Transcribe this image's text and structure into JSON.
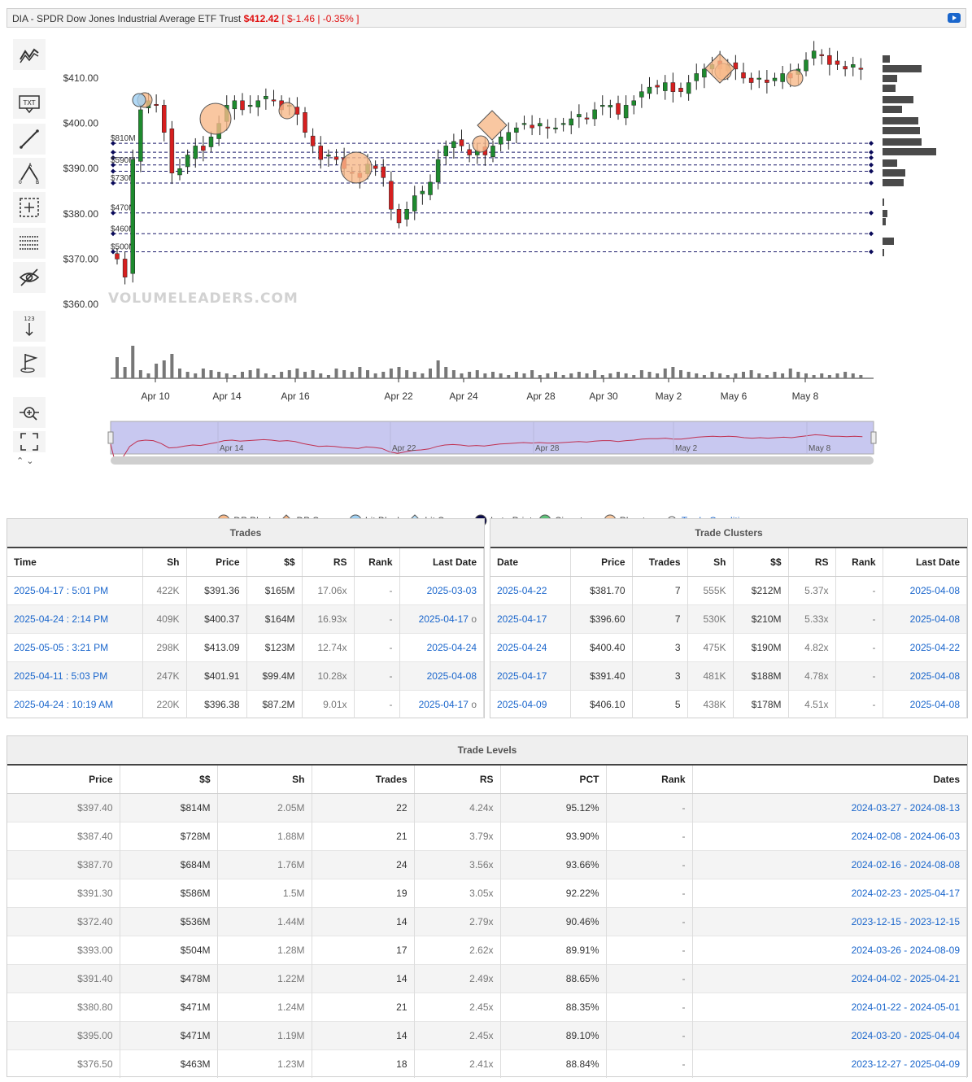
{
  "header": {
    "title": "DIA - SPDR Dow Jones Industrial Average ETF Trust",
    "price": "$412.42",
    "change": "[ $-1.46 | -0.35% ]"
  },
  "watermark": "VOLUMELEADERS.COM",
  "toolbar": {
    "txt_label": "TXT",
    "num_label": "123"
  },
  "chart_data": {
    "type": "candlestick",
    "y_ticks": [
      "$410.00",
      "$400.00",
      "$390.00",
      "$380.00",
      "$370.00",
      "$360.00"
    ],
    "y_values": [
      410,
      400,
      390,
      380,
      370,
      360
    ],
    "x_ticks": [
      "Apr 10",
      "Apr 14",
      "Apr 16",
      "Apr 22",
      "Apr 24",
      "Apr 28",
      "Apr 30",
      "May 2",
      "May 6",
      "May 8"
    ],
    "navigator_ticks": [
      "Apr 14",
      "Apr 22",
      "Apr 28",
      "May 2",
      "May 8"
    ],
    "level_labels": [
      {
        "label": "$810M",
        "price": 395.6
      },
      {
        "label": "$590M",
        "price": 390.8
      },
      {
        "label": "$730M",
        "price": 386.8
      },
      {
        "label": "$470M",
        "price": 380.2
      },
      {
        "label": "$460M",
        "price": 375.6
      },
      {
        "label": "$500M",
        "price": 371.6
      }
    ],
    "extra_levels": [
      393.6,
      392.4,
      389.4
    ]
  },
  "legend": [
    {
      "label": "DP Block",
      "color": "#f8b98a",
      "shape": "circle"
    },
    {
      "label": "DP Sweep",
      "color": "#f8b98a",
      "shape": "diamond"
    },
    {
      "label": "Lit Block",
      "color": "#9fd0f2",
      "shape": "circle"
    },
    {
      "label": "Lit Sweep",
      "color": "#b8e0f8",
      "shape": "diamond"
    },
    {
      "label": "Late Print",
      "color": "#0a0a4a",
      "shape": "circle"
    },
    {
      "label": "Signature",
      "color": "#5ec27a",
      "shape": "circle"
    },
    {
      "label": "Phantom",
      "color": "#f8c8a0",
      "shape": "circle"
    },
    {
      "label": "Trade Conditions",
      "color": "#1a66cc",
      "shape": "link"
    }
  ],
  "trades": {
    "title": "Trades",
    "columns": [
      "Time",
      "Sh",
      "Price",
      "$$",
      "RS",
      "Rank",
      "Last Date"
    ],
    "rows": [
      [
        "2025-04-17 : 5:01 PM",
        "422K",
        "$391.36",
        "$165M",
        "17.06x",
        "-",
        "2025-03-03",
        ""
      ],
      [
        "2025-04-24 : 2:14 PM",
        "409K",
        "$400.37",
        "$164M",
        "16.93x",
        "-",
        "2025-04-17",
        "o"
      ],
      [
        "2025-05-05 : 3:21 PM",
        "298K",
        "$413.09",
        "$123M",
        "12.74x",
        "-",
        "2025-04-24",
        ""
      ],
      [
        "2025-04-11 : 5:03 PM",
        "247K",
        "$401.91",
        "$99.4M",
        "10.28x",
        "-",
        "2025-04-08",
        ""
      ],
      [
        "2025-04-24 : 10:19 AM",
        "220K",
        "$396.38",
        "$87.2M",
        "9.01x",
        "-",
        "2025-04-17",
        "o"
      ]
    ]
  },
  "clusters": {
    "title": "Trade Clusters",
    "columns": [
      "Date",
      "Price",
      "Trades",
      "Sh",
      "$$",
      "RS",
      "Rank",
      "Last Date"
    ],
    "rows": [
      [
        "2025-04-22",
        "$381.70",
        "7",
        "555K",
        "$212M",
        "5.37x",
        "-",
        "2025-04-08"
      ],
      [
        "2025-04-17",
        "$396.60",
        "7",
        "530K",
        "$210M",
        "5.33x",
        "-",
        "2025-04-08"
      ],
      [
        "2025-04-24",
        "$400.40",
        "3",
        "475K",
        "$190M",
        "4.82x",
        "-",
        "2025-04-22"
      ],
      [
        "2025-04-17",
        "$391.40",
        "3",
        "481K",
        "$188M",
        "4.78x",
        "-",
        "2025-04-08"
      ],
      [
        "2025-04-09",
        "$406.10",
        "5",
        "438K",
        "$178M",
        "4.51x",
        "-",
        "2025-04-08"
      ]
    ]
  },
  "levels": {
    "title": "Trade Levels",
    "columns": [
      "Price",
      "$$",
      "Sh",
      "Trades",
      "RS",
      "PCT",
      "Rank",
      "Dates"
    ],
    "rows": [
      [
        "$397.40",
        "$814M",
        "2.05M",
        "22",
        "4.24x",
        "95.12%",
        "-",
        "2024-03-27 - 2024-08-13"
      ],
      [
        "$387.40",
        "$728M",
        "1.88M",
        "21",
        "3.79x",
        "93.90%",
        "-",
        "2024-02-08 - 2024-06-03"
      ],
      [
        "$387.70",
        "$684M",
        "1.76M",
        "24",
        "3.56x",
        "93.66%",
        "-",
        "2024-02-16 - 2024-08-08"
      ],
      [
        "$391.30",
        "$586M",
        "1.5M",
        "19",
        "3.05x",
        "92.22%",
        "-",
        "2024-02-23 - 2025-04-17"
      ],
      [
        "$372.40",
        "$536M",
        "1.44M",
        "14",
        "2.79x",
        "90.46%",
        "-",
        "2023-12-15 - 2023-12-15"
      ],
      [
        "$393.00",
        "$504M",
        "1.28M",
        "17",
        "2.62x",
        "89.91%",
        "-",
        "2024-03-26 - 2024-08-09"
      ],
      [
        "$391.40",
        "$478M",
        "1.22M",
        "14",
        "2.49x",
        "88.65%",
        "-",
        "2024-04-02 - 2025-04-21"
      ],
      [
        "$380.80",
        "$471M",
        "1.24M",
        "21",
        "2.45x",
        "88.35%",
        "-",
        "2024-01-22 - 2024-05-01"
      ],
      [
        "$395.00",
        "$471M",
        "1.19M",
        "14",
        "2.45x",
        "89.10%",
        "-",
        "2024-03-20 - 2025-04-04"
      ],
      [
        "$376.50",
        "$463M",
        "1.23M",
        "18",
        "2.41x",
        "88.84%",
        "-",
        "2023-12-27 - 2025-04-09"
      ]
    ]
  }
}
